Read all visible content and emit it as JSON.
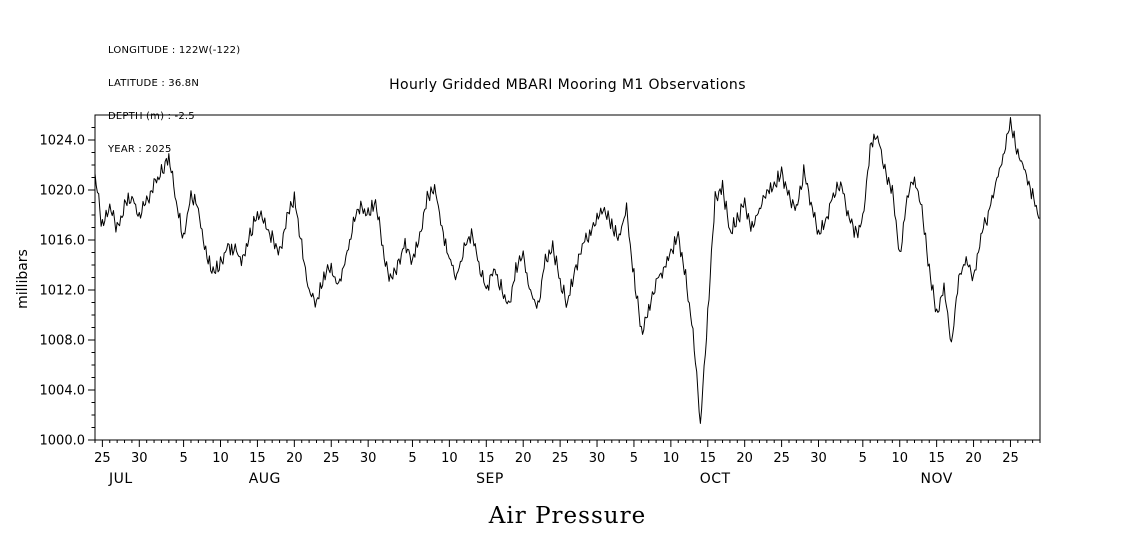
{
  "meta": {
    "lines": [
      "LONGITUDE : 122W(-122)",
      "LATITUDE : 36.8N",
      "DEPTH (m) : -2.5",
      "YEAR : 2025"
    ]
  },
  "chart_data": {
    "type": "line",
    "title": "Hourly Gridded MBARI Mooring M1 Observations",
    "xlabel": "Air Pressure",
    "ylabel": "millibars",
    "ylim": [
      1000,
      1026
    ],
    "y_major_ticks": [
      1000,
      1004,
      1008,
      1012,
      1016,
      1020,
      1024
    ],
    "y_tick_labels": [
      "1000.0",
      "1004.0",
      "1008.0",
      "1012.0",
      "1016.0",
      "1020.0",
      "1024.0"
    ],
    "x_range_days": [
      0,
      128
    ],
    "x_day0_date": "Jul 24",
    "x_ticks": [
      {
        "day": 1,
        "label": "25"
      },
      {
        "day": 6,
        "label": "30"
      },
      {
        "day": 12,
        "label": "5"
      },
      {
        "day": 17,
        "label": "10"
      },
      {
        "day": 22,
        "label": "15"
      },
      {
        "day": 27,
        "label": "20"
      },
      {
        "day": 32,
        "label": "25"
      },
      {
        "day": 37,
        "label": "30"
      },
      {
        "day": 43,
        "label": "5"
      },
      {
        "day": 48,
        "label": "10"
      },
      {
        "day": 53,
        "label": "15"
      },
      {
        "day": 58,
        "label": "20"
      },
      {
        "day": 63,
        "label": "25"
      },
      {
        "day": 68,
        "label": "30"
      },
      {
        "day": 73,
        "label": "5"
      },
      {
        "day": 78,
        "label": "10"
      },
      {
        "day": 83,
        "label": "15"
      },
      {
        "day": 88,
        "label": "20"
      },
      {
        "day": 93,
        "label": "25"
      },
      {
        "day": 98,
        "label": "30"
      },
      {
        "day": 104,
        "label": "5"
      },
      {
        "day": 109,
        "label": "10"
      },
      {
        "day": 114,
        "label": "15"
      },
      {
        "day": 119,
        "label": "20"
      },
      {
        "day": 124,
        "label": "25"
      }
    ],
    "month_labels": [
      {
        "label": "JUL",
        "center_day": 3.5
      },
      {
        "label": "AUG",
        "center_day": 23
      },
      {
        "label": "SEP",
        "center_day": 53.5
      },
      {
        "label": "OCT",
        "center_day": 84
      },
      {
        "label": "NOV",
        "center_day": 114
      }
    ],
    "grid": false,
    "line_color": "#000000",
    "series": [
      {
        "name": "Air Pressure",
        "units": "millibars",
        "sampling": "daily estimates read from hourly trace, day 0 = Jul 24 2025",
        "values": [
          1021.3,
          1017.0,
          1018.5,
          1017.0,
          1018.8,
          1019.3,
          1018.0,
          1019.0,
          1020.5,
          1021.5,
          1022.8,
          1019.0,
          1016.0,
          1019.5,
          1018.5,
          1014.8,
          1013.5,
          1014.0,
          1015.5,
          1015.0,
          1014.3,
          1016.5,
          1018.2,
          1017.3,
          1016.2,
          1014.8,
          1018.0,
          1019.3,
          1015.5,
          1012.0,
          1010.8,
          1013.2,
          1013.6,
          1012.4,
          1014.6,
          1017.4,
          1018.8,
          1018.1,
          1019.0,
          1015.4,
          1012.6,
          1014.1,
          1015.6,
          1014.4,
          1016.6,
          1019.4,
          1020.2,
          1017.0,
          1014.4,
          1013.0,
          1015.4,
          1016.4,
          1014.0,
          1011.9,
          1013.6,
          1012.4,
          1010.6,
          1013.6,
          1015.0,
          1011.6,
          1010.8,
          1014.4,
          1015.6,
          1012.6,
          1010.9,
          1013.4,
          1015.6,
          1016.6,
          1017.6,
          1018.4,
          1017.0,
          1016.4,
          1018.3,
          1013.0,
          1008.6,
          1010.4,
          1012.6,
          1013.6,
          1015.0,
          1016.4,
          1013.0,
          1008.4,
          1001.3,
          1010.0,
          1019.4,
          1020.2,
          1016.6,
          1017.6,
          1019.0,
          1016.9,
          1018.4,
          1019.6,
          1020.4,
          1021.4,
          1019.4,
          1018.4,
          1021.4,
          1019.0,
          1016.4,
          1017.6,
          1019.6,
          1020.6,
          1018.0,
          1016.4,
          1017.6,
          1023.4,
          1024.3,
          1021.6,
          1020.0,
          1014.6,
          1019.4,
          1021.0,
          1018.4,
          1013.6,
          1010.0,
          1012.4,
          1007.8,
          1013.0,
          1014.4,
          1013.0,
          1016.4,
          1018.0,
          1020.4,
          1022.4,
          1025.6,
          1023.0,
          1021.4,
          1019.4,
          1017.4
        ]
      }
    ]
  }
}
